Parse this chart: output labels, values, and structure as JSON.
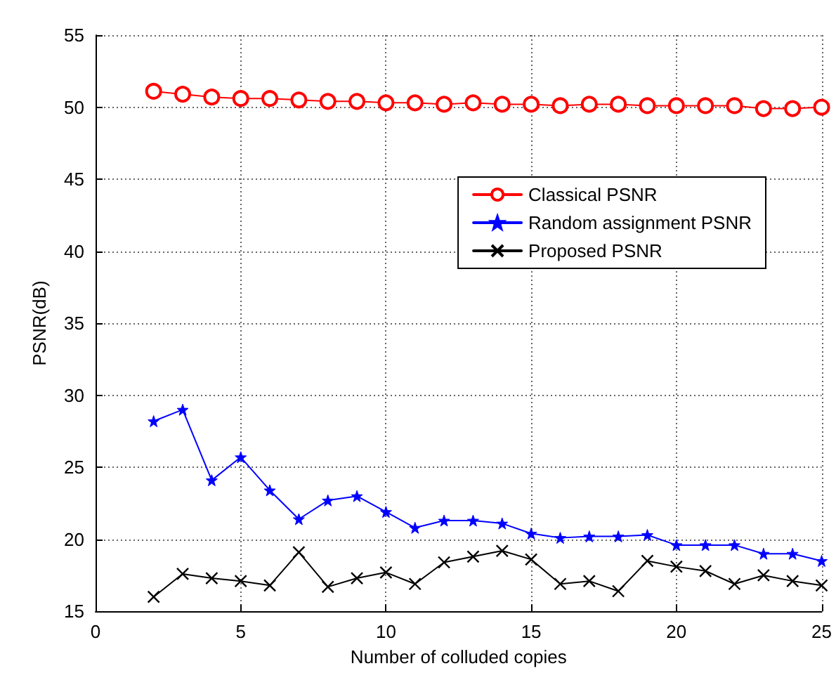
{
  "chart_data": {
    "type": "line",
    "xlabel": "Number of colluded copies",
    "ylabel": "PSNR(dB)",
    "x": [
      2,
      3,
      4,
      5,
      6,
      7,
      8,
      9,
      10,
      11,
      12,
      13,
      14,
      15,
      16,
      17,
      18,
      19,
      20,
      21,
      22,
      23,
      24,
      25
    ],
    "series": [
      {
        "name": "Classical PSNR",
        "color": "#ff0000",
        "marker": "circle",
        "values": [
          51.1,
          50.9,
          50.7,
          50.6,
          50.6,
          50.5,
          50.4,
          50.4,
          50.3,
          50.3,
          50.2,
          50.3,
          50.2,
          50.2,
          50.1,
          50.2,
          50.2,
          50.1,
          50.1,
          50.1,
          50.1,
          49.9,
          49.9,
          50.0
        ]
      },
      {
        "name": "Random assignment PSNR",
        "color": "#0000ff",
        "marker": "star",
        "values": [
          28.2,
          29.0,
          24.1,
          25.7,
          23.4,
          21.4,
          22.7,
          23.0,
          21.9,
          20.8,
          21.3,
          21.3,
          21.1,
          20.4,
          20.1,
          20.2,
          20.2,
          20.3,
          19.6,
          19.6,
          19.6,
          19.0,
          19.0,
          18.5
        ]
      },
      {
        "name": "Proposed PSNR",
        "color": "#000000",
        "marker": "cross",
        "values": [
          16.0,
          17.6,
          17.3,
          17.1,
          16.8,
          19.1,
          16.7,
          17.3,
          17.7,
          16.9,
          18.4,
          18.8,
          19.2,
          18.6,
          16.9,
          17.1,
          16.4,
          18.5,
          18.1,
          17.8,
          16.9,
          17.5,
          17.1,
          16.8
        ]
      }
    ],
    "xlim": [
      0,
      25
    ],
    "xticks": [
      0,
      5,
      10,
      15,
      20,
      25
    ],
    "ylim": [
      15,
      55
    ],
    "yticks": [
      15,
      20,
      25,
      30,
      35,
      40,
      45,
      50,
      55
    ],
    "grid": true,
    "legend": "right",
    "line_style": "solid"
  }
}
